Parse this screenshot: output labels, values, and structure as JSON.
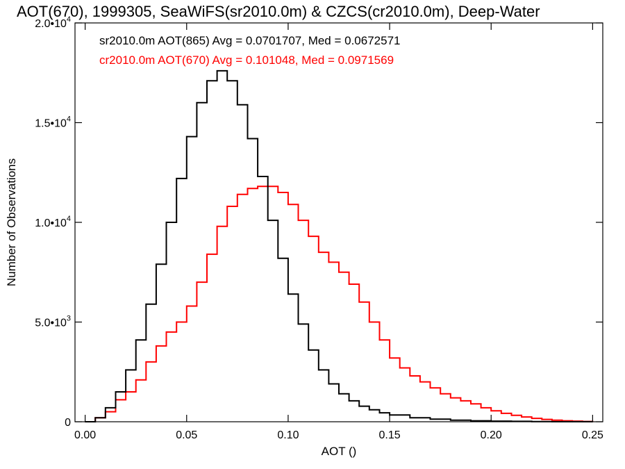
{
  "chart_data": {
    "type": "line",
    "title": "AOT(670), 1999305, SeaWiFS(sr2010.0m) & CZCS(cr2010.0m), Deep-Water",
    "xlabel": "AOT ()",
    "ylabel": "Number of Observations",
    "xlim": [
      -0.005,
      0.255
    ],
    "ylim": [
      0,
      20000
    ],
    "x_ticks": [
      {
        "value": 0.0,
        "label": "0.00"
      },
      {
        "value": 0.05,
        "label": "0.05"
      },
      {
        "value": 0.1,
        "label": "0.10"
      },
      {
        "value": 0.15,
        "label": "0.15"
      },
      {
        "value": 0.2,
        "label": "0.20"
      },
      {
        "value": 0.25,
        "label": "0.25"
      }
    ],
    "y_ticks": [
      {
        "value": 0,
        "mantissa": "0",
        "exp": ""
      },
      {
        "value": 5000,
        "mantissa": "5.0•10",
        "exp": "3"
      },
      {
        "value": 10000,
        "mantissa": "1.0•10",
        "exp": "4"
      },
      {
        "value": 15000,
        "mantissa": "1.5•10",
        "exp": "4"
      },
      {
        "value": 20000,
        "mantissa": "2.0•10",
        "exp": "4"
      }
    ],
    "grid": false,
    "legend_position": "top-left",
    "series": [
      {
        "name": "sr2010.0m AOT(865) Avg = 0.0701707, Med = 0.0672571",
        "color": "#000000",
        "x": [
          0,
          0.005,
          0.01,
          0.015,
          0.02,
          0.025,
          0.03,
          0.035,
          0.04,
          0.045,
          0.05,
          0.055,
          0.06,
          0.065,
          0.07,
          0.075,
          0.08,
          0.085,
          0.09,
          0.095,
          0.1,
          0.105,
          0.11,
          0.115,
          0.12,
          0.125,
          0.13,
          0.135,
          0.14,
          0.145,
          0.15,
          0.16,
          0.17,
          0.18,
          0.19,
          0.2,
          0.21,
          0.22,
          0.23,
          0.24,
          0.25
        ],
        "values": [
          0,
          200,
          700,
          1500,
          2600,
          4100,
          5900,
          7900,
          10000,
          12200,
          14300,
          16000,
          17100,
          17600,
          17100,
          15900,
          14200,
          12300,
          10100,
          8200,
          6400,
          4900,
          3600,
          2600,
          1900,
          1400,
          1050,
          780,
          600,
          450,
          340,
          200,
          130,
          80,
          50,
          30,
          20,
          10,
          5,
          3,
          2
        ]
      },
      {
        "name": "cr2010.0m AOT(670) Avg = 0.101048, Med = 0.0971569",
        "color": "#ff0000",
        "x": [
          0,
          0.005,
          0.01,
          0.015,
          0.02,
          0.025,
          0.03,
          0.035,
          0.04,
          0.045,
          0.05,
          0.055,
          0.06,
          0.065,
          0.07,
          0.075,
          0.08,
          0.085,
          0.09,
          0.095,
          0.1,
          0.105,
          0.11,
          0.115,
          0.12,
          0.125,
          0.13,
          0.135,
          0.14,
          0.145,
          0.15,
          0.155,
          0.16,
          0.165,
          0.17,
          0.175,
          0.18,
          0.185,
          0.19,
          0.195,
          0.2,
          0.205,
          0.21,
          0.215,
          0.22,
          0.225,
          0.23,
          0.235,
          0.24,
          0.245,
          0.25
        ],
        "values": [
          0,
          200,
          500,
          1100,
          1500,
          2100,
          3000,
          3800,
          4500,
          5000,
          5800,
          7000,
          8400,
          9800,
          10800,
          11400,
          11700,
          11800,
          11800,
          11500,
          10900,
          10100,
          9300,
          8500,
          8000,
          7500,
          6900,
          6000,
          5000,
          4100,
          3200,
          2700,
          2300,
          2000,
          1700,
          1400,
          1200,
          1050,
          900,
          700,
          550,
          420,
          320,
          240,
          170,
          120,
          80,
          50,
          30,
          15,
          10
        ]
      }
    ]
  }
}
